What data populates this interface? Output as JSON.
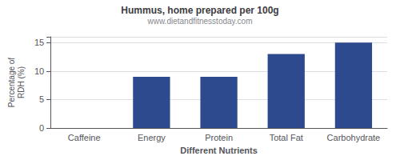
{
  "chart_data": {
    "type": "bar",
    "title": "Hummus, home prepared per 100g",
    "subtitle": "www.dietandfitnesstoday.com",
    "xlabel": "Different Nutrients",
    "ylabel": "Percentage of\nRDH (%)",
    "categories": [
      "Caffeine",
      "Energy",
      "Protein",
      "Total Fat",
      "Carbohydrate"
    ],
    "values": [
      0,
      9,
      9,
      13,
      15
    ],
    "color": "#2e4a8e",
    "ylim": [
      0,
      16
    ],
    "yticks": [
      0,
      5,
      10,
      15
    ],
    "grid": true
  }
}
